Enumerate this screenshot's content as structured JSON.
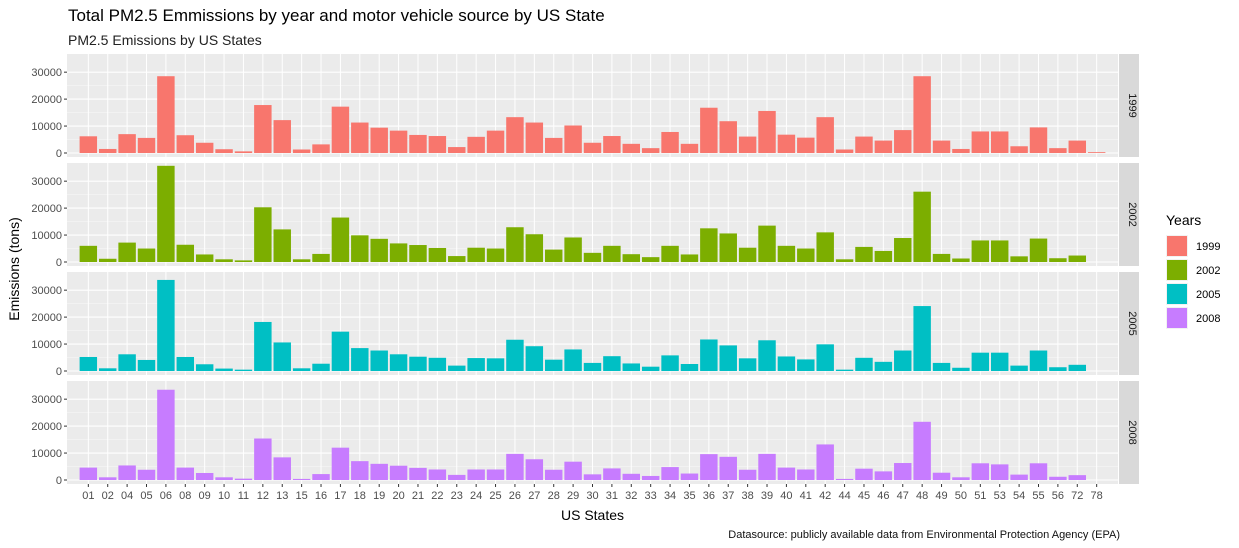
{
  "chart_data": {
    "type": "bar",
    "title": "Total PM2.5 Emmissions by year and motor vehicle source by US State",
    "subtitle": "PM2.5 Emissions by US States",
    "xlabel": "US States",
    "ylabel": "Emissions (tons)",
    "caption": "Datasource: publicly available data from Environmental Protection Agency (EPA)",
    "ylim": [
      0,
      36000
    ],
    "yticks": [
      0,
      10000,
      20000,
      30000
    ],
    "grid": true,
    "legend": {
      "title": "Years",
      "placement": "right"
    },
    "categories": [
      "01",
      "02",
      "04",
      "05",
      "06",
      "08",
      "09",
      "10",
      "11",
      "12",
      "13",
      "15",
      "16",
      "17",
      "18",
      "19",
      "20",
      "21",
      "22",
      "23",
      "24",
      "25",
      "26",
      "27",
      "28",
      "29",
      "30",
      "31",
      "32",
      "33",
      "34",
      "35",
      "36",
      "37",
      "38",
      "39",
      "40",
      "41",
      "42",
      "44",
      "45",
      "46",
      "47",
      "48",
      "49",
      "50",
      "51",
      "53",
      "54",
      "55",
      "56",
      "72",
      "78"
    ],
    "series": [
      {
        "name": "1999",
        "color": "#F8766D",
        "values": [
          6200,
          1500,
          7000,
          5600,
          28500,
          6600,
          3800,
          1400,
          600,
          17800,
          12200,
          1300,
          3200,
          17200,
          11300,
          9400,
          8300,
          6700,
          6300,
          2200,
          6000,
          8300,
          13300,
          11300,
          5600,
          10200,
          3800,
          6300,
          3400,
          1800,
          7800,
          3400,
          16800,
          11800,
          6100,
          15600,
          6800,
          5700,
          13300,
          1300,
          6100,
          4600,
          8500,
          28500,
          4600,
          1500,
          8000,
          8000,
          2500,
          9500,
          1800,
          4600,
          300
        ]
      },
      {
        "name": "2002",
        "color": "#7CAE00",
        "values": [
          6000,
          1200,
          7200,
          5000,
          35700,
          6400,
          2800,
          1000,
          600,
          20300,
          12100,
          1000,
          3000,
          16500,
          9900,
          8600,
          6900,
          6300,
          5200,
          2200,
          5300,
          5000,
          12900,
          10300,
          4600,
          9100,
          3400,
          6000,
          2900,
          1800,
          6000,
          2800,
          12500,
          10600,
          5300,
          13500,
          6000,
          5000,
          11000,
          1000,
          5600,
          4100,
          8900,
          26100,
          3000,
          1300,
          8000,
          8000,
          2100,
          8700,
          1400,
          2400,
          0
        ]
      },
      {
        "name": "2005",
        "color": "#00BFC4",
        "values": [
          5200,
          1000,
          6200,
          4100,
          33800,
          5200,
          2500,
          900,
          500,
          18200,
          10600,
          1000,
          2700,
          14600,
          8500,
          7600,
          6200,
          5300,
          4900,
          2000,
          4800,
          4700,
          11600,
          9200,
          4200,
          8000,
          3000,
          5500,
          2800,
          1600,
          5800,
          2600,
          11700,
          9500,
          4700,
          11400,
          5400,
          4300,
          9900,
          500,
          4900,
          3400,
          7600,
          24100,
          3000,
          1200,
          6800,
          6800,
          2000,
          7600,
          1400,
          2300,
          0
        ]
      },
      {
        "name": "2008",
        "color": "#C77CFF",
        "values": [
          4600,
          1000,
          5400,
          3800,
          33500,
          4600,
          2600,
          1000,
          500,
          15400,
          8400,
          400,
          2200,
          12000,
          7000,
          6000,
          5300,
          4500,
          3900,
          1900,
          3900,
          3900,
          9700,
          7700,
          3800,
          6800,
          2100,
          4300,
          2300,
          1500,
          4800,
          2400,
          9600,
          8600,
          3800,
          9700,
          4600,
          3900,
          13200,
          400,
          4200,
          3200,
          6300,
          21600,
          2700,
          1000,
          6200,
          5800,
          2000,
          6200,
          1200,
          1800,
          0
        ]
      }
    ]
  }
}
